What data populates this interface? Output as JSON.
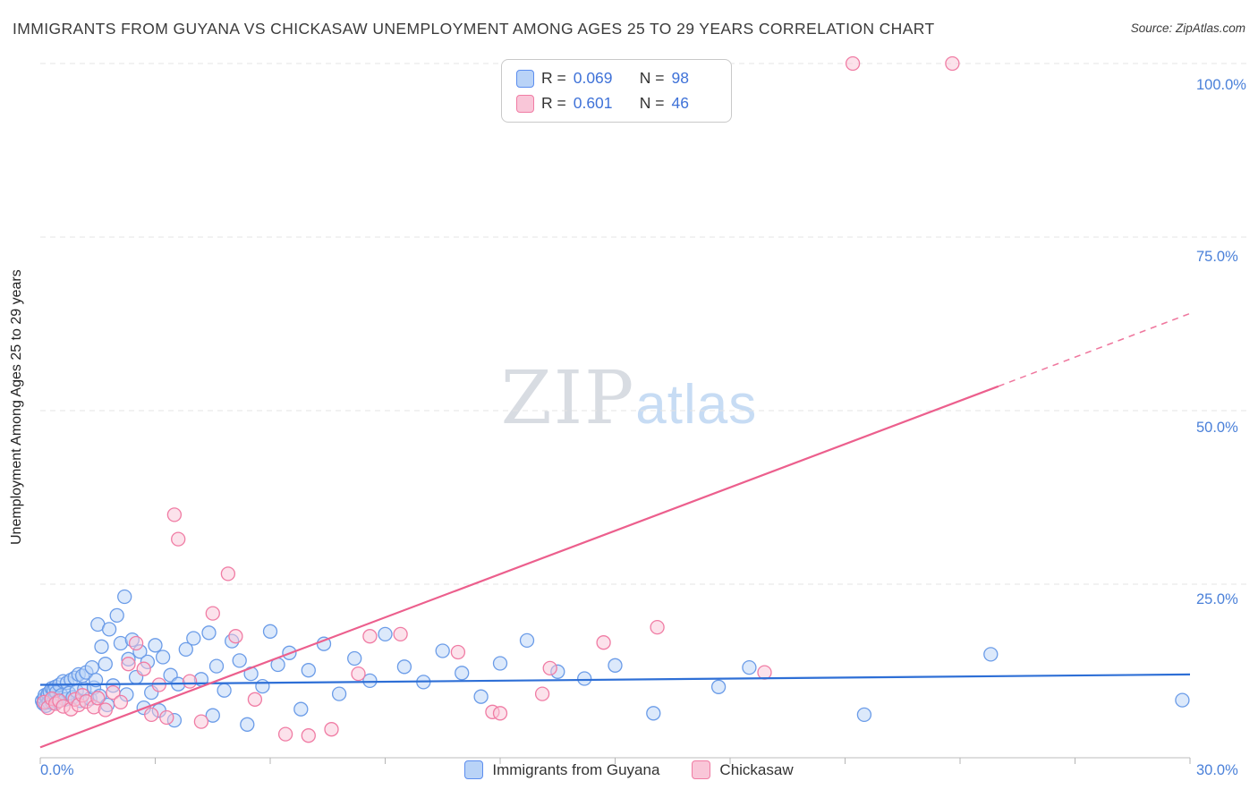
{
  "header": {
    "title": "IMMIGRANTS FROM GUYANA VS CHICKASAW UNEMPLOYMENT AMONG AGES 25 TO 29 YEARS CORRELATION CHART",
    "source": "Source: ZipAtlas.com"
  },
  "watermark": {
    "part1": "ZIP",
    "part2": "atlas"
  },
  "axes": {
    "y_label": "Unemployment Among Ages 25 to 29 years",
    "y_tick_labels": [
      "100.0%",
      "75.0%",
      "50.0%",
      "25.0%"
    ],
    "x_min_label": "0.0%",
    "x_max_label": "30.0%"
  },
  "legend_box": {
    "rows": [
      {
        "r_label": "R =",
        "r_value": "0.069",
        "n_label": "N =",
        "n_value": "98"
      },
      {
        "r_label": "R =",
        "r_value": "0.601",
        "n_label": "N =",
        "n_value": "46"
      }
    ]
  },
  "bottom_legend": [
    {
      "label": "Immigrants from Guyana"
    },
    {
      "label": "Chickasaw"
    }
  ],
  "colors": {
    "accent_blue_text": "#4a80d9",
    "blue_point_fill": "#b9d3f7",
    "blue_point_stroke": "#6b9ce8",
    "pink_point_fill": "#f9c6d8",
    "pink_point_stroke": "#f07ca4",
    "blue_trend": "#2e6fd6",
    "pink_trend": "#ec5f8d",
    "gridline": "#e4e4e4"
  },
  "chart_data": {
    "type": "scatter",
    "title": "Immigrants from Guyana vs Chickasaw Unemployment Among Ages 25 to 29 years",
    "xlabel": "Immigrants from Guyana (%)",
    "ylabel": "Unemployment Among Ages 25 to 29 years (%)",
    "xlim": [
      0,
      30
    ],
    "ylim": [
      0,
      100
    ],
    "grid": "horizontal-dashed",
    "legend_position": "top-center",
    "x_ticks": [
      0,
      3,
      6,
      9,
      12,
      15,
      18,
      21,
      24,
      27,
      30
    ],
    "y_gridlines": [
      25,
      50,
      75,
      100
    ],
    "series": [
      {
        "name": "Immigrants from Guyana",
        "R": 0.069,
        "N": 98,
        "fill": "#b9d3f7",
        "stroke": "#6b9ce8",
        "points": [
          [
            0.05,
            8.2
          ],
          [
            0.08,
            7.8
          ],
          [
            0.1,
            8.5
          ],
          [
            0.12,
            9.0
          ],
          [
            0.15,
            7.5
          ],
          [
            0.18,
            8.8
          ],
          [
            0.2,
            9.2
          ],
          [
            0.22,
            8.0
          ],
          [
            0.25,
            9.5
          ],
          [
            0.28,
            8.3
          ],
          [
            0.3,
            10.0
          ],
          [
            0.32,
            7.9
          ],
          [
            0.35,
            9.8
          ],
          [
            0.38,
            8.6
          ],
          [
            0.4,
            10.2
          ],
          [
            0.42,
            9.4
          ],
          [
            0.45,
            8.1
          ],
          [
            0.5,
            10.5
          ],
          [
            0.55,
            9.0
          ],
          [
            0.6,
            11.0
          ],
          [
            0.65,
            8.4
          ],
          [
            0.7,
            10.8
          ],
          [
            0.75,
            9.3
          ],
          [
            0.8,
            11.2
          ],
          [
            0.85,
            8.7
          ],
          [
            0.9,
            11.5
          ],
          [
            0.95,
            9.6
          ],
          [
            1.0,
            12.0
          ],
          [
            1.05,
            8.2
          ],
          [
            1.1,
            11.8
          ],
          [
            1.15,
            9.9
          ],
          [
            1.2,
            12.3
          ],
          [
            1.3,
            8.5
          ],
          [
            1.35,
            13.0
          ],
          [
            1.4,
            10.1
          ],
          [
            1.45,
            11.2
          ],
          [
            1.5,
            19.2
          ],
          [
            1.55,
            8.9
          ],
          [
            1.6,
            16.0
          ],
          [
            1.7,
            13.5
          ],
          [
            1.75,
            7.6
          ],
          [
            1.8,
            18.5
          ],
          [
            1.9,
            10.4
          ],
          [
            2.0,
            20.5
          ],
          [
            2.1,
            16.5
          ],
          [
            2.2,
            23.2
          ],
          [
            2.25,
            9.1
          ],
          [
            2.3,
            14.2
          ],
          [
            2.4,
            17.0
          ],
          [
            2.5,
            11.6
          ],
          [
            2.6,
            15.3
          ],
          [
            2.7,
            7.2
          ],
          [
            2.8,
            13.8
          ],
          [
            2.9,
            9.4
          ],
          [
            3.0,
            16.2
          ],
          [
            3.1,
            6.8
          ],
          [
            3.2,
            14.5
          ],
          [
            3.4,
            11.9
          ],
          [
            3.5,
            5.4
          ],
          [
            3.6,
            10.6
          ],
          [
            3.8,
            15.6
          ],
          [
            4.0,
            17.2
          ],
          [
            4.2,
            11.3
          ],
          [
            4.4,
            18.0
          ],
          [
            4.5,
            6.1
          ],
          [
            4.6,
            13.2
          ],
          [
            4.8,
            9.7
          ],
          [
            5.0,
            16.8
          ],
          [
            5.2,
            14.0
          ],
          [
            5.4,
            4.8
          ],
          [
            5.5,
            12.1
          ],
          [
            5.8,
            10.3
          ],
          [
            6.0,
            18.2
          ],
          [
            6.2,
            13.4
          ],
          [
            6.5,
            15.1
          ],
          [
            6.8,
            7.0
          ],
          [
            7.0,
            12.6
          ],
          [
            7.4,
            16.4
          ],
          [
            7.8,
            9.2
          ],
          [
            8.2,
            14.3
          ],
          [
            8.6,
            11.1
          ],
          [
            9.0,
            17.8
          ],
          [
            9.5,
            13.1
          ],
          [
            10.0,
            10.9
          ],
          [
            10.5,
            15.4
          ],
          [
            11.0,
            12.2
          ],
          [
            11.5,
            8.8
          ],
          [
            12.0,
            13.6
          ],
          [
            12.7,
            16.9
          ],
          [
            13.5,
            12.4
          ],
          [
            14.2,
            11.4
          ],
          [
            15.0,
            13.3
          ],
          [
            16.0,
            6.4
          ],
          [
            17.7,
            10.2
          ],
          [
            18.5,
            13.0
          ],
          [
            21.5,
            6.2
          ],
          [
            24.8,
            14.9
          ],
          [
            29.8,
            8.3
          ]
        ]
      },
      {
        "name": "Chickasaw",
        "R": 0.601,
        "N": 46,
        "fill": "#f9c6d8",
        "stroke": "#f07ca4",
        "points": [
          [
            0.1,
            8.0
          ],
          [
            0.2,
            7.2
          ],
          [
            0.3,
            8.5
          ],
          [
            0.4,
            7.8
          ],
          [
            0.5,
            8.2
          ],
          [
            0.6,
            7.4
          ],
          [
            0.8,
            7.0
          ],
          [
            0.9,
            8.4
          ],
          [
            1.0,
            7.6
          ],
          [
            1.1,
            9.0
          ],
          [
            1.2,
            8.1
          ],
          [
            1.4,
            7.3
          ],
          [
            1.5,
            8.6
          ],
          [
            1.7,
            6.9
          ],
          [
            1.9,
            9.4
          ],
          [
            2.1,
            8.0
          ],
          [
            2.3,
            13.5
          ],
          [
            2.5,
            16.5
          ],
          [
            2.7,
            12.8
          ],
          [
            2.9,
            6.2
          ],
          [
            3.1,
            10.5
          ],
          [
            3.3,
            5.8
          ],
          [
            3.5,
            35.0
          ],
          [
            3.6,
            31.5
          ],
          [
            3.9,
            11.0
          ],
          [
            4.2,
            5.2
          ],
          [
            4.5,
            20.8
          ],
          [
            4.9,
            26.5
          ],
          [
            5.1,
            17.5
          ],
          [
            5.6,
            8.4
          ],
          [
            6.4,
            3.4
          ],
          [
            7.0,
            3.2
          ],
          [
            7.6,
            4.1
          ],
          [
            8.3,
            12.1
          ],
          [
            8.6,
            17.5
          ],
          [
            9.4,
            17.8
          ],
          [
            10.9,
            15.2
          ],
          [
            11.8,
            6.6
          ],
          [
            12.0,
            6.4
          ],
          [
            13.1,
            9.2
          ],
          [
            13.3,
            12.9
          ],
          [
            14.7,
            16.6
          ],
          [
            16.1,
            18.8
          ],
          [
            18.9,
            12.3
          ],
          [
            21.2,
            100.0
          ],
          [
            23.8,
            100.0
          ]
        ]
      }
    ],
    "trend_lines": [
      {
        "series": "Immigrants from Guyana",
        "color": "#2e6fd6",
        "style": "solid",
        "x1": 0,
        "y1": 10.5,
        "x2": 30,
        "y2": 12.0
      },
      {
        "series": "Chickasaw",
        "color": "#ec5f8d",
        "style": "solid",
        "x1": 0,
        "y1": 1.5,
        "x2": 25,
        "y2": 53.5
      },
      {
        "series": "Chickasaw",
        "color": "#ec5f8d",
        "style": "dashed",
        "x1": 25,
        "y1": 53.5,
        "x2": 30,
        "y2": 64.0
      }
    ]
  }
}
